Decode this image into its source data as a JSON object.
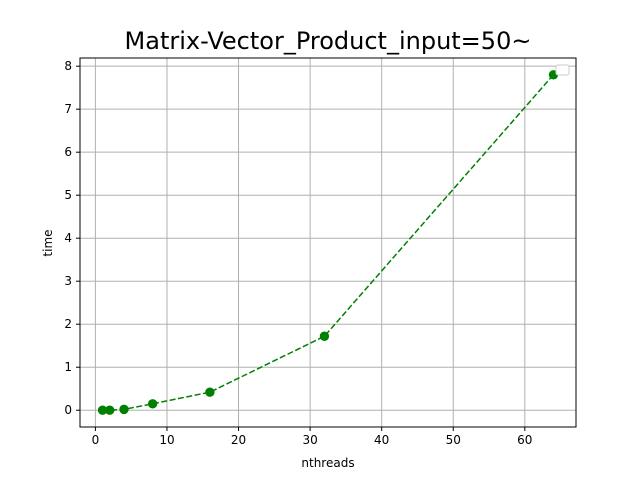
{
  "chart_data": {
    "type": "line",
    "title": "Matrix-Vector_Product_input=50~",
    "xlabel": "nthreads",
    "ylabel": "time",
    "xlim": [
      -2.15,
      67.15
    ],
    "ylim": [
      -0.39,
      8.19
    ],
    "xticks": [
      0,
      10,
      20,
      30,
      40,
      50,
      60
    ],
    "yticks": [
      0,
      1,
      2,
      3,
      4,
      5,
      6,
      7,
      8
    ],
    "grid": true,
    "legend": "top-right",
    "series": [
      {
        "color": "#008000",
        "linestyle": "dashed",
        "marker": "circle",
        "x": [
          1,
          2,
          4,
          8,
          16,
          32,
          64
        ],
        "y": [
          0.0,
          0.0,
          0.02,
          0.15,
          0.42,
          1.72,
          7.8
        ]
      }
    ]
  }
}
